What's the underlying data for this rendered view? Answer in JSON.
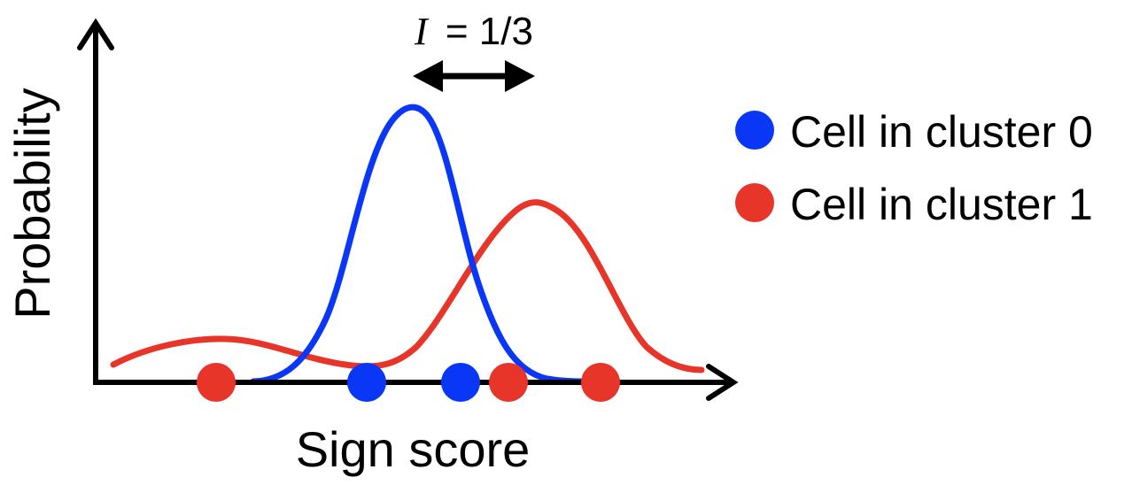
{
  "diagram": {
    "xlabel": "Sign score",
    "ylabel": "Probability",
    "annotation": {
      "symbol": "I",
      "value": "= 1/3"
    },
    "legend": [
      {
        "label": "Cell in cluster 0",
        "color": "#0a37f5"
      },
      {
        "label": "Cell in cluster 1",
        "color": "#e8352a"
      }
    ],
    "colors": {
      "cluster_0": "#0a37f5",
      "cluster_1": "#e8352a",
      "axis": "#000000"
    },
    "cell_dots": [
      {
        "cluster": 1
      },
      {
        "cluster": 0
      },
      {
        "cluster": 0
      },
      {
        "cluster": 1
      },
      {
        "cluster": 1
      }
    ],
    "curves": [
      {
        "cluster": 0,
        "shape": "narrow-peak"
      },
      {
        "cluster": 1,
        "shape": "bimodal-wide"
      }
    ]
  }
}
